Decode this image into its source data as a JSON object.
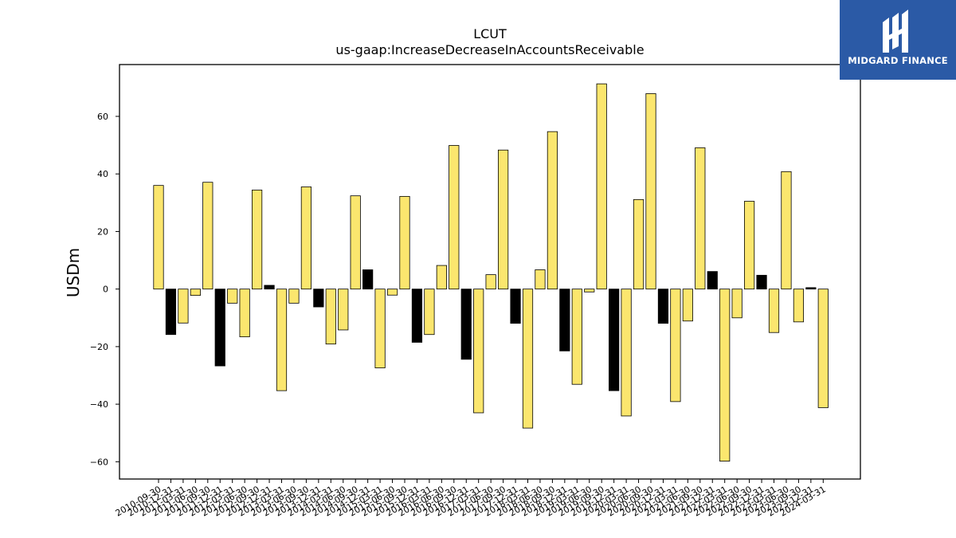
{
  "brand": {
    "name": "MIDGARD FINANCE",
    "color": "#2b5aa6"
  },
  "chart_data": {
    "type": "bar",
    "title": "LCUT",
    "subtitle": "us-gaap:IncreaseDecreaseInAccountsReceivable",
    "xlabel": "",
    "ylabel": "USDm",
    "ylim": [
      -66,
      78
    ],
    "yticks": [
      -60,
      -40,
      -20,
      0,
      20,
      40,
      60
    ],
    "grid": false,
    "colors": {
      "default": "#fbe66e",
      "highlight": "#000000",
      "edge": "#000000"
    },
    "categories": [
      "2010-09-30",
      "2010-12-31",
      "2011-03-31",
      "2011-06-30",
      "2011-09-30",
      "2011-12-31",
      "2012-03-31",
      "2012-06-30",
      "2012-09-30",
      "2012-12-31",
      "2013-03-31",
      "2013-06-30",
      "2013-09-30",
      "2013-12-31",
      "2014-03-31",
      "2014-06-30",
      "2014-09-30",
      "2014-12-31",
      "2015-03-31",
      "2015-06-30",
      "2015-09-30",
      "2015-12-31",
      "2016-03-31",
      "2016-06-30",
      "2016-09-30",
      "2016-12-31",
      "2017-03-31",
      "2017-06-30",
      "2017-09-30",
      "2017-12-31",
      "2018-03-31",
      "2018-06-30",
      "2018-09-30",
      "2018-12-31",
      "2019-03-31",
      "2019-06-30",
      "2019-09-30",
      "2019-12-31",
      "2020-03-31",
      "2020-06-30",
      "2020-09-30",
      "2020-12-31",
      "2021-03-31",
      "2021-06-30",
      "2021-09-30",
      "2021-12-31",
      "2022-03-31",
      "2022-06-30",
      "2022-09-30",
      "2022-12-31",
      "2023-03-31",
      "2023-06-30",
      "2023-09-30",
      "2023-12-31",
      "2024-03-31"
    ],
    "xtick_labels": [
      "2010-09-30",
      "2010-12-31",
      "2011-03-31",
      "2011-06-30",
      "2011-09-30",
      "2011-12-31",
      "2012-03-31",
      "2012-06-30",
      "2012-09-30",
      "2012-12-31",
      "2013-03-31",
      "2013-06-30",
      "2013-09-30",
      "2013-12-31",
      "2014-03-31",
      "2014-06-30",
      "2014-09-30",
      "2014-12-31",
      "2015-03-31",
      "2015-06-30",
      "2015-09-30",
      "2015-12-31",
      "2016-03-31",
      "2016-06-30",
      "2016-09-30",
      "2016-12-31",
      "2017-03-31",
      "2017-06-30",
      "2017-09-30",
      "2017-12-31",
      "2018-03-31",
      "2018-06-30",
      "2018-09-30",
      "2018-12-31",
      "2019-03-31",
      "2019-06-30",
      "2019-09-30",
      "2019-12-31",
      "2020-03-31",
      "2020-06-30",
      "2020-09-30",
      "2020-12-31",
      "2021-03-31",
      "2021-06-30",
      "2021-09-30",
      "2021-12-31",
      "2022-03-31",
      "2022-06-30",
      "2022-09-30",
      "2022-12-31",
      "2023-03-31",
      "2023-06-30",
      "2023-09-30",
      "2023-12-31",
      "2024-03-31"
    ],
    "values": [
      36.0,
      -15.8,
      -11.8,
      -2.2,
      37.1,
      -26.7,
      -4.9,
      -16.6,
      34.4,
      1.3,
      -35.3,
      -4.9,
      35.5,
      -6.2,
      -19.1,
      -14.2,
      32.4,
      6.7,
      -27.4,
      -2.1,
      32.2,
      -18.5,
      -15.8,
      8.2,
      49.9,
      -24.4,
      -43.0,
      5.0,
      48.3,
      -11.9,
      -48.3,
      6.7,
      54.7,
      -21.5,
      -33.1,
      -1.0,
      71.3,
      -35.3,
      -44.1,
      31.1,
      67.9,
      -11.9,
      -39.1,
      -11.1,
      49.1,
      6.1,
      -59.8,
      -10.0,
      30.5,
      4.8,
      -15.1,
      40.8,
      -11.4,
      0.5,
      -41.2
    ],
    "highlight": [
      false,
      true,
      false,
      false,
      false,
      true,
      false,
      false,
      false,
      true,
      false,
      false,
      false,
      true,
      false,
      false,
      false,
      true,
      false,
      false,
      false,
      true,
      false,
      false,
      false,
      true,
      false,
      false,
      false,
      true,
      false,
      false,
      false,
      true,
      false,
      false,
      false,
      true,
      false,
      false,
      false,
      true,
      false,
      false,
      false,
      true,
      false,
      false,
      false,
      true,
      false,
      false,
      false,
      true,
      false
    ]
  }
}
